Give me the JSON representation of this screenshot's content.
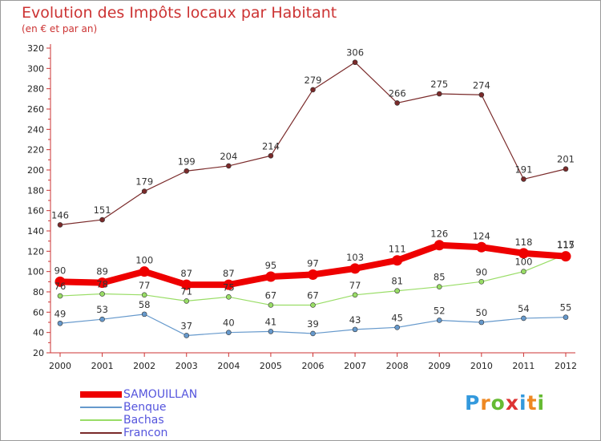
{
  "title": "Evolution des Impôts locaux par Habitant",
  "subtitle": "(en € et par an)",
  "logo": {
    "text": "Proxiti"
  },
  "chart_data": {
    "type": "line",
    "title": "Evolution des Impôts locaux par Habitant",
    "subtitle": "(en € et par an)",
    "xlabel": "",
    "ylabel": "",
    "ylim": [
      20,
      320
    ],
    "yticks": [
      20,
      40,
      60,
      80,
      100,
      120,
      140,
      160,
      180,
      200,
      220,
      240,
      260,
      280,
      300,
      320
    ],
    "grid": false,
    "legend_position": "bottom-left",
    "x": [
      "2000",
      "2001",
      "2002",
      "2003",
      "2004",
      "2005",
      "2006",
      "2007",
      "2008",
      "2009",
      "2010",
      "2011",
      "2012"
    ],
    "series": [
      {
        "name": "SAMOUILLAN",
        "color": "#ee0000",
        "values": [
          90,
          89,
          100,
          87,
          87,
          95,
          97,
          103,
          111,
          126,
          124,
          118,
          115
        ]
      },
      {
        "name": "Benque",
        "color": "#6699cc",
        "values": [
          49,
          53,
          58,
          37,
          40,
          41,
          39,
          43,
          45,
          52,
          50,
          54,
          55
        ]
      },
      {
        "name": "Bachas",
        "color": "#99dd66",
        "values": [
          76,
          78,
          77,
          71,
          75,
          67,
          67,
          77,
          81,
          85,
          90,
          100,
          117
        ]
      },
      {
        "name": "Francon",
        "color": "#7a2a2a",
        "values": [
          146,
          151,
          179,
          199,
          204,
          214,
          279,
          306,
          266,
          275,
          274,
          191,
          201
        ]
      }
    ]
  }
}
